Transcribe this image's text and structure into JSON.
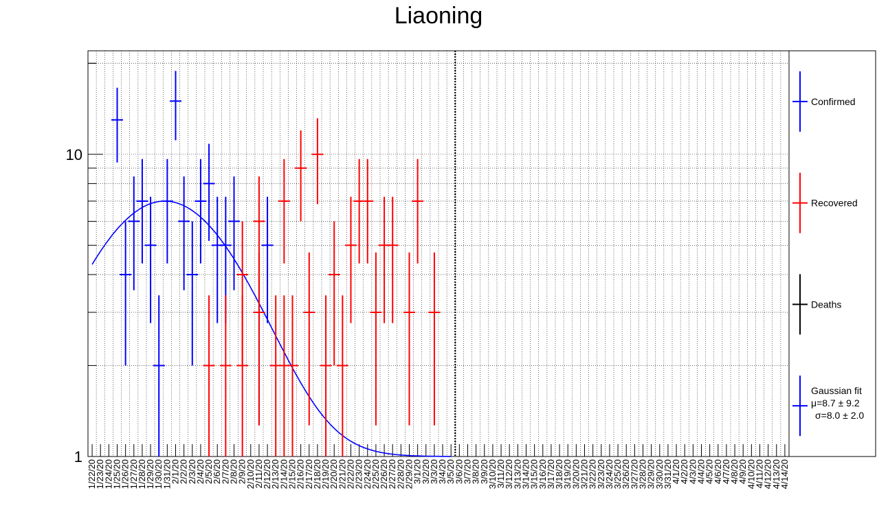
{
  "chart_data": {
    "type": "scatter",
    "title": "Liaoning",
    "xlabel": "",
    "ylabel": "",
    "y_scale": "log",
    "ylim": [
      1,
      22
    ],
    "y_tick_labels": [
      "1",
      "10"
    ],
    "grid": true,
    "legend_position": "right",
    "categories": [
      "1/22/20",
      "1/23/20",
      "1/24/20",
      "1/25/20",
      "1/26/20",
      "1/27/20",
      "1/28/20",
      "1/29/20",
      "1/30/20",
      "1/31/20",
      "2/1/20",
      "2/2/20",
      "2/3/20",
      "2/4/20",
      "2/5/20",
      "2/6/20",
      "2/7/20",
      "2/8/20",
      "2/9/20",
      "2/10/20",
      "2/11/20",
      "2/12/20",
      "2/13/20",
      "2/14/20",
      "2/15/20",
      "2/16/20",
      "2/17/20",
      "2/18/20",
      "2/19/20",
      "2/20/20",
      "2/21/20",
      "2/22/20",
      "2/23/20",
      "2/24/20",
      "2/25/20",
      "2/26/20",
      "2/27/20",
      "2/28/20",
      "2/29/20",
      "3/1/20",
      "3/2/20",
      "3/3/20",
      "3/4/20",
      "3/5/20",
      "3/6/20",
      "3/7/20",
      "3/8/20",
      "3/9/20",
      "3/10/20",
      "3/11/20",
      "3/12/20",
      "3/13/20",
      "3/14/20",
      "3/15/20",
      "3/16/20",
      "3/17/20",
      "3/18/20",
      "3/19/20",
      "3/20/20",
      "3/21/20",
      "3/22/20",
      "3/23/20",
      "3/24/20",
      "3/25/20",
      "3/26/20",
      "3/27/20",
      "3/28/20",
      "3/29/20",
      "3/30/20",
      "3/31/20",
      "4/1/20",
      "4/2/20",
      "4/3/20",
      "4/4/20",
      "4/5/20",
      "4/6/20",
      "4/7/20",
      "4/8/20",
      "4/9/20",
      "4/10/20",
      "4/11/20",
      "4/12/20",
      "4/13/20",
      "4/14/20"
    ],
    "vertical_marker_date": "3/5/20",
    "series": [
      {
        "name": "Confirmed",
        "color": "#0000ff",
        "points": [
          {
            "date": "1/25/20",
            "value": 13
          },
          {
            "date": "1/26/20",
            "value": 4
          },
          {
            "date": "1/27/20",
            "value": 6
          },
          {
            "date": "1/28/20",
            "value": 7
          },
          {
            "date": "1/29/20",
            "value": 5
          },
          {
            "date": "1/30/20",
            "value": 2
          },
          {
            "date": "1/31/20",
            "value": 7
          },
          {
            "date": "2/1/20",
            "value": 15
          },
          {
            "date": "2/2/20",
            "value": 6
          },
          {
            "date": "2/3/20",
            "value": 4
          },
          {
            "date": "2/4/20",
            "value": 7
          },
          {
            "date": "2/5/20",
            "value": 8
          },
          {
            "date": "2/6/20",
            "value": 5
          },
          {
            "date": "2/7/20",
            "value": 5
          },
          {
            "date": "2/8/20",
            "value": 6
          },
          {
            "date": "2/11/20",
            "value": 3
          },
          {
            "date": "2/12/20",
            "value": 5
          }
        ]
      },
      {
        "name": "Recovered",
        "color": "#ff0000",
        "points": [
          {
            "date": "2/5/20",
            "value": 2
          },
          {
            "date": "2/7/20",
            "value": 2
          },
          {
            "date": "2/9/20",
            "value": 2
          },
          {
            "date": "2/9/20",
            "value": 4
          },
          {
            "date": "2/11/20",
            "value": 6
          },
          {
            "date": "2/11/20",
            "value": 3
          },
          {
            "date": "2/13/20",
            "value": 2
          },
          {
            "date": "2/14/20",
            "value": 7
          },
          {
            "date": "2/14/20",
            "value": 2
          },
          {
            "date": "2/15/20",
            "value": 2
          },
          {
            "date": "2/16/20",
            "value": 9
          },
          {
            "date": "2/17/20",
            "value": 3
          },
          {
            "date": "2/18/20",
            "value": 10
          },
          {
            "date": "2/19/20",
            "value": 2
          },
          {
            "date": "2/20/20",
            "value": 4
          },
          {
            "date": "2/21/20",
            "value": 2
          },
          {
            "date": "2/22/20",
            "value": 5
          },
          {
            "date": "2/23/20",
            "value": 7
          },
          {
            "date": "2/24/20",
            "value": 7
          },
          {
            "date": "2/25/20",
            "value": 3
          },
          {
            "date": "2/26/20",
            "value": 5
          },
          {
            "date": "2/27/20",
            "value": 5
          },
          {
            "date": "2/29/20",
            "value": 3
          },
          {
            "date": "3/1/20",
            "value": 7
          },
          {
            "date": "3/3/20",
            "value": 3
          }
        ]
      },
      {
        "name": "Deaths",
        "color": "#000000",
        "points": []
      }
    ],
    "fit": {
      "name": "Gaussian fit",
      "color": "#0000ff",
      "mu_label": "μ=8.7  ± 9.2",
      "sigma_label": "σ=8.0  ± 2.0"
    }
  }
}
